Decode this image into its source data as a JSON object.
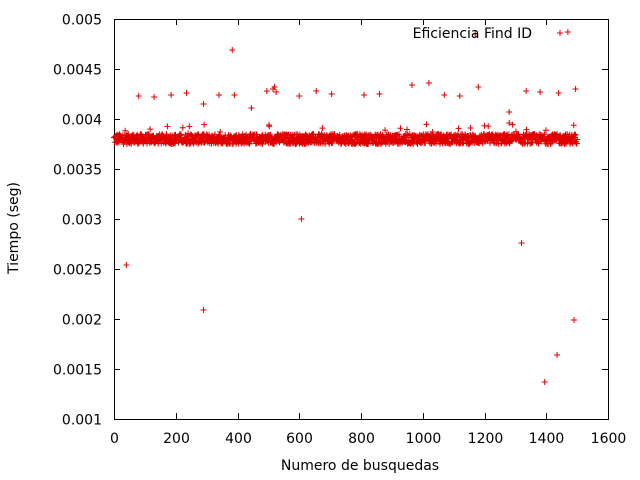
{
  "chart_data": {
    "type": "scatter",
    "title": "",
    "xlabel": "Numero de busquedas",
    "ylabel": "Tiempo (seg)",
    "xlim": [
      0,
      1600
    ],
    "ylim": [
      0.001,
      0.005
    ],
    "xticks": [
      0,
      200,
      400,
      600,
      800,
      1000,
      1200,
      1400,
      1600
    ],
    "xtick_labels": [
      "0",
      "200",
      "400",
      "600",
      "800",
      "1000",
      "1200",
      "1400",
      "1600"
    ],
    "yticks": [
      0.001,
      0.0015,
      0.002,
      0.0025,
      0.003,
      0.0035,
      0.004,
      0.0045,
      0.005
    ],
    "ytick_labels": [
      "0.001",
      "0.0015",
      "0.002",
      "0.0025",
      "0.003",
      "0.0035",
      "0.004",
      "0.0045",
      "0.005"
    ],
    "grid": false,
    "legend_position": "top-right",
    "marker_color": "#e00000",
    "series": [
      {
        "name": "Eficiencia Find ID",
        "marker": "plus",
        "baseline": {
          "x_start": 0,
          "x_end": 1500,
          "x_step": 1,
          "typical_y": 0.0038,
          "y_spread": 5e-05
        },
        "points": [
          [
            40,
            0.00254
          ],
          [
            80,
            0.00423
          ],
          [
            130,
            0.00422
          ],
          [
            185,
            0.00424
          ],
          [
            235,
            0.00426
          ],
          [
            290,
            0.00209
          ],
          [
            290,
            0.00415
          ],
          [
            340,
            0.00424
          ],
          [
            383,
            0.00469
          ],
          [
            390,
            0.00424
          ],
          [
            445,
            0.00411
          ],
          [
            495,
            0.00428
          ],
          [
            515,
            0.0043
          ],
          [
            520,
            0.00432
          ],
          [
            525,
            0.00427
          ],
          [
            600,
            0.00423
          ],
          [
            607,
            0.003
          ],
          [
            655,
            0.00428
          ],
          [
            705,
            0.00425
          ],
          [
            810,
            0.00424
          ],
          [
            860,
            0.00425
          ],
          [
            965,
            0.00434
          ],
          [
            1020,
            0.00436
          ],
          [
            1070,
            0.00424
          ],
          [
            1120,
            0.00423
          ],
          [
            1170,
            0.00485
          ],
          [
            1180,
            0.00432
          ],
          [
            1280,
            0.00407
          ],
          [
            1280,
            0.00396
          ],
          [
            1320,
            0.00276
          ],
          [
            1335,
            0.00428
          ],
          [
            1380,
            0.00427
          ],
          [
            1395,
            0.00137
          ],
          [
            1435,
            0.00164
          ],
          [
            1440,
            0.00426
          ],
          [
            1470,
            0.00487
          ],
          [
            1490,
            0.00199
          ],
          [
            1495,
            0.0043
          ]
        ]
      }
    ]
  }
}
